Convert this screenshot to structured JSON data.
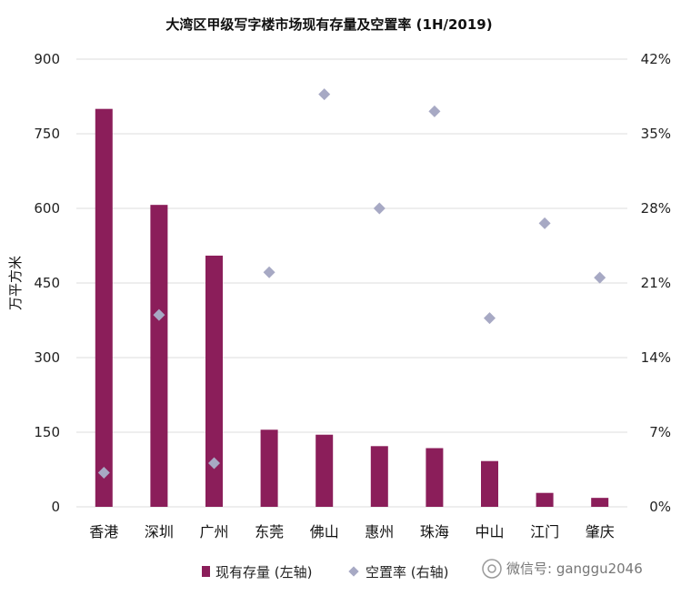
{
  "chart_data": {
    "type": "bar",
    "title": "大湾区甲级写字楼市场现有存量及空置率 (1H/2019)",
    "categories": [
      "香港",
      "深圳",
      "广州",
      "东莞",
      "佛山",
      "惠州",
      "珠海",
      "中山",
      "江门",
      "肇庆"
    ],
    "ylabel": "万平方米",
    "ylim": [
      0,
      900
    ],
    "yticks": [
      "0",
      "150",
      "300",
      "450",
      "600",
      "750",
      "900"
    ],
    "y2lim": [
      0,
      42
    ],
    "y2ticks": [
      "0%",
      "7%",
      "14%",
      "21%",
      "28%",
      "35%",
      "42%"
    ],
    "grid": true,
    "legend_position": "bottom",
    "series": [
      {
        "name": "现有存量 (左轴)",
        "type": "bar",
        "axis": "left",
        "color": "#8b1e5a",
        "values": [
          800,
          607,
          505,
          155,
          145,
          122,
          118,
          92,
          28,
          18
        ]
      },
      {
        "name": "空置率 (右轴)",
        "type": "scatter",
        "axis": "right",
        "color": "#a7a9c4",
        "values": [
          3.2,
          18,
          4.1,
          22,
          38.7,
          28,
          37.1,
          17.7,
          26.6,
          21.5
        ]
      }
    ]
  },
  "watermark": {
    "text": "微信号: ganggu2046"
  }
}
